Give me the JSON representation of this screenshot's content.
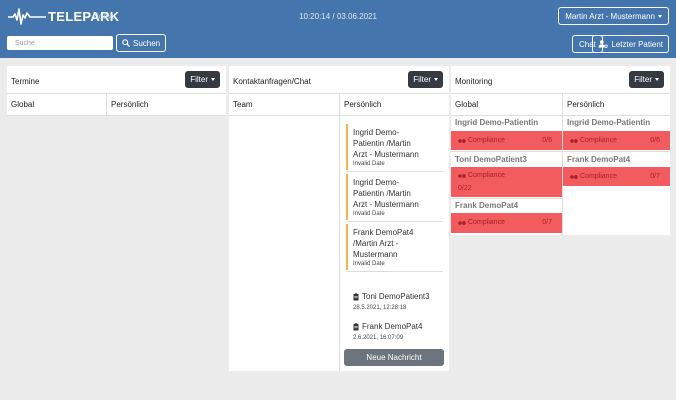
{
  "header": {
    "logo_text": "TELEPARK",
    "home_label": "Home",
    "datetime": "10:20:14 / 03.06.2021",
    "user_label": "Martin Arzt - Mustermann",
    "search_placeholder": "Suche",
    "search_label": "Suchen",
    "chat_label": "Chat",
    "last_patient_label": "Letzter Patient"
  },
  "termine": {
    "title": "Termine",
    "filter_label": "Filter",
    "col_global": "Global",
    "col_personal": "Persönlich"
  },
  "kontakt": {
    "title": "Kontaktanfragen/Chat",
    "filter_label": "Filter",
    "col_team": "Team",
    "col_personal": "Persönlich",
    "chats": [
      {
        "line1": "Ingrid Demo-",
        "line2": "Patientin /Martin",
        "line3": "Arzt - Mustermann",
        "date": "Invalid Date"
      },
      {
        "line1": "Ingrid Demo-",
        "line2": "Patientin /Martin",
        "line3": "Arzt - Mustermann",
        "date": "Invalid Date"
      },
      {
        "line1": "Frank DemoPat4",
        "line2": "/Martin Arzt -",
        "line3": "Mustermann",
        "date": "Invalid Date"
      }
    ],
    "messages": [
      {
        "name": "Toni DemoPatient3",
        "date": "28.5.2021, 12:28:18"
      },
      {
        "name": "Frank DemoPat4",
        "date": "2.6.2021, 16:07:09"
      }
    ],
    "new_message_label": "Neue Nachricht"
  },
  "monitoring": {
    "title": "Monitoring",
    "filter_label": "Filter",
    "col_global": "Global",
    "col_personal": "Persönlich",
    "global": [
      {
        "name": "Ingrid Demo-Patientin",
        "label": "Compliance",
        "value": "0/6"
      },
      {
        "name": "Toni DemoPatient3",
        "label": "Compliance",
        "value": "0/22"
      },
      {
        "name": "Frank DemoPat4",
        "label": "Compliance",
        "value": "0/7"
      }
    ],
    "personal": [
      {
        "name": "Ingrid Demo-Patientin",
        "label": "Compliance",
        "value": "0/6"
      },
      {
        "name": "Frank DemoPat4",
        "label": "Compliance",
        "value": "0/7"
      }
    ]
  },
  "colors": {
    "header_bg": "#4575ad",
    "alert_bg": "#f25c5e",
    "alert_text": "#a32328",
    "chat_accent": "#f1b54a",
    "filter_bg": "#343a40"
  }
}
